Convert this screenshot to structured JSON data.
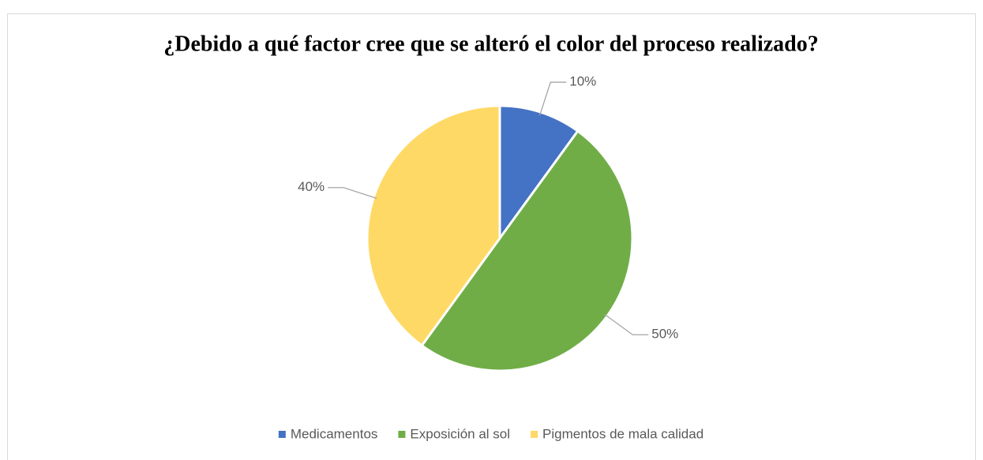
{
  "chart_data": {
    "type": "pie",
    "title": "¿Debido a qué factor cree que se alteró el color del proceso realizado?",
    "categories": [
      "Medicamentos",
      "Exposición al sol",
      "Pigmentos de mala calidad"
    ],
    "values": [
      10,
      50,
      40
    ],
    "value_labels": [
      "10%",
      "50%",
      "40%"
    ],
    "colors": [
      "#4472c4",
      "#70ad47",
      "#ffd966"
    ],
    "legend": "bottom"
  }
}
